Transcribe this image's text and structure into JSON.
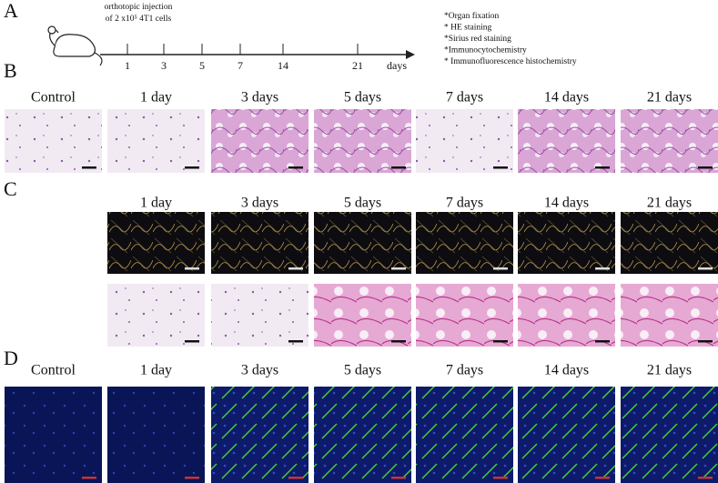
{
  "panel_a": {
    "label": "A",
    "injection_text": [
      "orthotopic injection",
      "of 2 x10⁵ 4T1 cells"
    ],
    "timeline_ticks": [
      "1",
      "3",
      "5",
      "7",
      "14",
      "21"
    ],
    "timeline_unit": "days",
    "procedures": [
      "*Organ fixation",
      "* HE staining",
      "*Sirius red staining",
      "*Immunocytochemistry",
      "* Immunofluorescence histochemistry"
    ]
  },
  "panel_b": {
    "label": "B",
    "columns": [
      "Control",
      "1 day",
      "3 days",
      "5 days",
      "7 days",
      "14 days",
      "21 days"
    ]
  },
  "panel_c": {
    "label": "C",
    "columns": [
      "1 day",
      "3 days",
      "5 days",
      "7 days",
      "14 days",
      "21 days"
    ]
  },
  "panel_d": {
    "label": "D",
    "columns": [
      "Control",
      "1 day",
      "3 days",
      "5 days",
      "7 days",
      "14 days",
      "21 days"
    ]
  }
}
